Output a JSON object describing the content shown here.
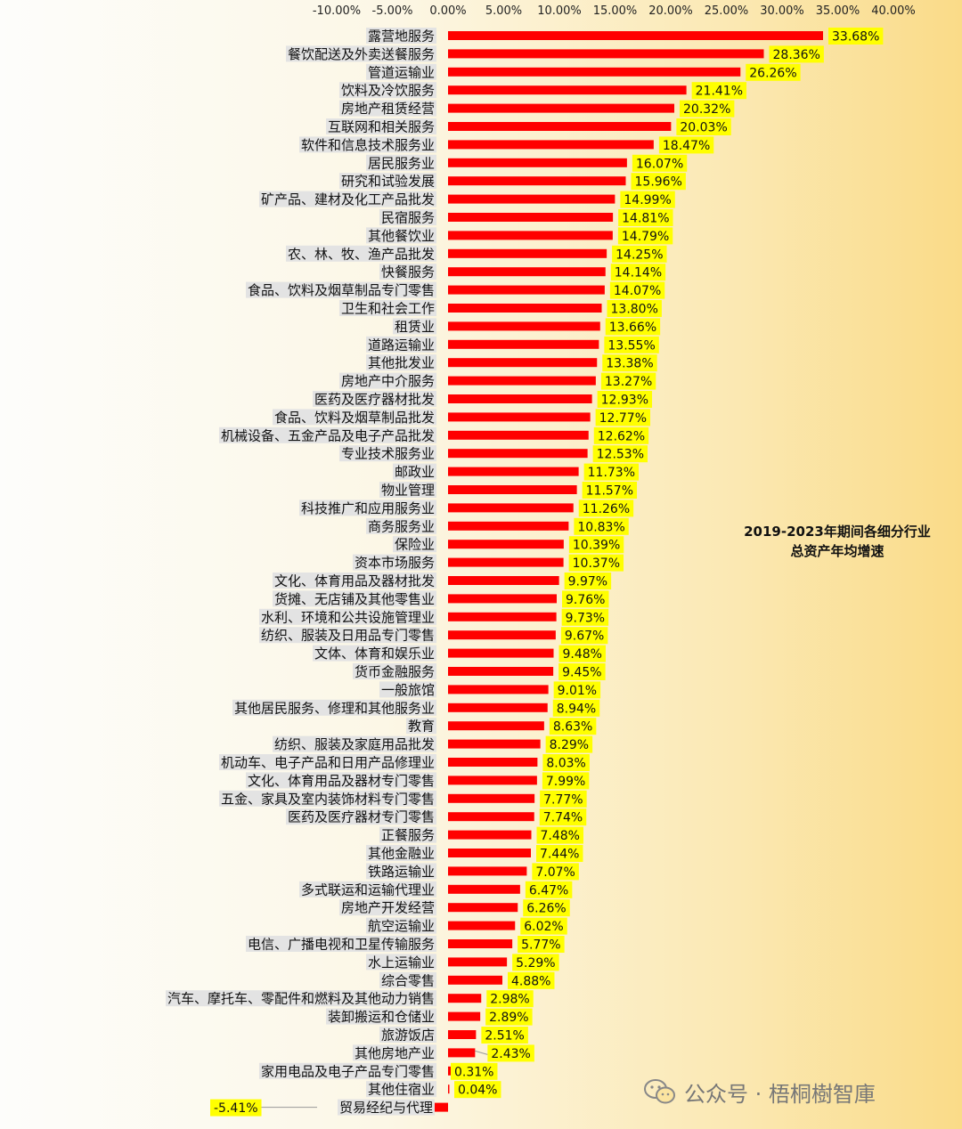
{
  "chart_data": {
    "type": "bar",
    "orientation": "horizontal",
    "title": "2019-2023年期间各细分行业总资产年均增速",
    "title_lines": [
      "2019-2023年期间各细分行业",
      "总资产年均增速"
    ],
    "xlim": [
      -10,
      40
    ],
    "x_ticks": [
      -10,
      -5,
      0,
      5,
      10,
      15,
      20,
      25,
      30,
      35,
      40
    ],
    "x_tick_labels": [
      "-10.00%",
      "-5.00%",
      "0.00%",
      "5.00%",
      "10.00%",
      "15.00%",
      "20.00%",
      "25.00%",
      "30.00%",
      "35.00%",
      "40.00%"
    ],
    "grid": false,
    "bar_color": "#ff0000",
    "label_color": "#ffff00",
    "categories": [
      "露营地服务",
      "餐饮配送及外卖送餐服务",
      "管道运输业",
      "饮料及冷饮服务",
      "房地产租赁经营",
      "互联网和相关服务",
      "软件和信息技术服务业",
      "居民服务业",
      "研究和试验发展",
      "矿产品、建材及化工产品批发",
      "民宿服务",
      "其他餐饮业",
      "农、林、牧、渔产品批发",
      "快餐服务",
      "食品、饮料及烟草制品专门零售",
      "卫生和社会工作",
      "租赁业",
      "道路运输业",
      "其他批发业",
      "房地产中介服务",
      "医药及医疗器材批发",
      "食品、饮料及烟草制品批发",
      "机械设备、五金产品及电子产品批发",
      "专业技术服务业",
      "邮政业",
      "物业管理",
      "科技推广和应用服务业",
      "商务服务业",
      "保险业",
      "资本市场服务",
      "文化、体育用品及器材批发",
      "货摊、无店铺及其他零售业",
      "水利、环境和公共设施管理业",
      "纺织、服装及日用品专门零售",
      "文体、体育和娱乐业",
      "货币金融服务",
      "一般旅馆",
      "其他居民服务、修理和其他服务业",
      "教育",
      "纺织、服装及家庭用品批发",
      "机动车、电子产品和日用产品修理业",
      "文化、体育用品及器材专门零售",
      "五金、家具及室内装饰材料专门零售",
      "医药及医疗器材专门零售",
      "正餐服务",
      "其他金融业",
      "铁路运输业",
      "多式联运和运输代理业",
      "房地产开发经营",
      "航空运输业",
      "电信、广播电视和卫星传输服务",
      "水上运输业",
      "综合零售",
      "汽车、摩托车、零配件和燃料及其他动力销售",
      "装卸搬运和仓储业",
      "旅游饭店",
      "其他房地产业",
      "家用电品及电子产品专门零售",
      "其他住宿业",
      "贸易经纪与代理"
    ],
    "values": [
      33.68,
      28.36,
      26.26,
      21.41,
      20.32,
      20.03,
      18.47,
      16.07,
      15.96,
      14.99,
      14.81,
      14.79,
      14.25,
      14.14,
      14.07,
      13.8,
      13.66,
      13.55,
      13.38,
      13.27,
      12.93,
      12.77,
      12.62,
      12.53,
      11.73,
      11.57,
      11.26,
      10.83,
      10.39,
      10.37,
      9.97,
      9.76,
      9.73,
      9.67,
      9.48,
      9.45,
      9.01,
      8.94,
      8.63,
      8.29,
      8.03,
      7.99,
      7.77,
      7.74,
      7.48,
      7.44,
      7.07,
      6.47,
      6.26,
      6.02,
      5.77,
      5.29,
      4.88,
      2.98,
      2.89,
      2.51,
      2.43,
      0.31,
      0.04,
      -5.41
    ],
    "value_labels": [
      "33.68%",
      "28.36%",
      "26.26%",
      "21.41%",
      "20.32%",
      "20.03%",
      "18.47%",
      "16.07%",
      "15.96%",
      "14.99%",
      "14.81%",
      "14.79%",
      "14.25%",
      "14.14%",
      "14.07%",
      "13.80%",
      "13.66%",
      "13.55%",
      "13.38%",
      "13.27%",
      "12.93%",
      "12.77%",
      "12.62%",
      "12.53%",
      "11.73%",
      "11.57%",
      "11.26%",
      "10.83%",
      "10.39%",
      "10.37%",
      "9.97%",
      "9.76%",
      "9.73%",
      "9.67%",
      "9.48%",
      "9.45%",
      "9.01%",
      "8.94%",
      "8.63%",
      "8.29%",
      "8.03%",
      "7.99%",
      "7.77%",
      "7.74%",
      "7.48%",
      "7.44%",
      "7.07%",
      "6.47%",
      "6.26%",
      "6.02%",
      "5.77%",
      "5.29%",
      "4.88%",
      "2.98%",
      "2.89%",
      "2.51%",
      "2.43%",
      "0.31%",
      "0.04%",
      "-5.41%"
    ]
  },
  "watermark": {
    "icon": "wechat-icon",
    "text": "公众号 · 梧桐樹智庫"
  }
}
